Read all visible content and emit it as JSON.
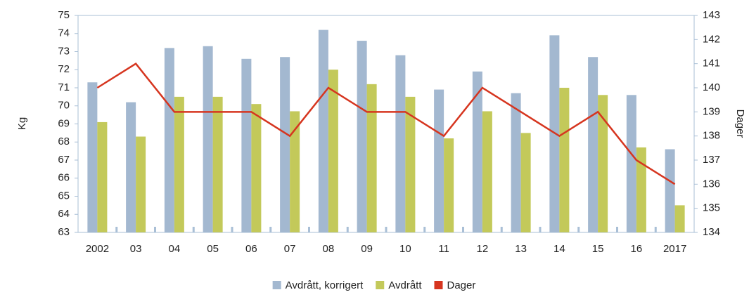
{
  "chart_data": {
    "type": "bar-line",
    "y_label": "Kg",
    "y2_label": "Dager",
    "categories": [
      "2002",
      "03",
      "04",
      "05",
      "06",
      "07",
      "08",
      "09",
      "10",
      "11",
      "12",
      "13",
      "14",
      "15",
      "16",
      "2017"
    ],
    "series": [
      {
        "name": "Avdrått, korrigert",
        "color": "#a3b8d0",
        "type": "bar",
        "values": [
          71.3,
          70.2,
          73.2,
          73.3,
          72.6,
          72.7,
          74.2,
          73.6,
          72.8,
          70.9,
          71.9,
          70.7,
          73.9,
          72.7,
          70.6,
          67.6
        ]
      },
      {
        "name": "Avdrått",
        "color": "#c3c95a",
        "type": "bar",
        "values": [
          69.1,
          68.3,
          70.5,
          70.5,
          70.1,
          69.7,
          72.0,
          71.2,
          70.5,
          68.2,
          69.7,
          68.5,
          71.0,
          70.6,
          67.7,
          64.5
        ]
      },
      {
        "name": "Dager",
        "color": "#d6351f",
        "type": "line",
        "axis": "y2",
        "values": [
          140,
          141,
          139,
          139,
          139,
          138,
          140,
          139,
          139,
          138,
          140,
          139,
          138,
          139,
          137,
          136
        ]
      }
    ],
    "ylim": [
      63,
      75
    ],
    "yticks": [
      63,
      64,
      65,
      66,
      67,
      68,
      69,
      70,
      71,
      72,
      73,
      74,
      75
    ],
    "y2lim": [
      134,
      143
    ],
    "y2ticks": [
      134,
      135,
      136,
      137,
      138,
      139,
      140,
      141,
      142,
      143
    ],
    "legend": "bottom"
  }
}
